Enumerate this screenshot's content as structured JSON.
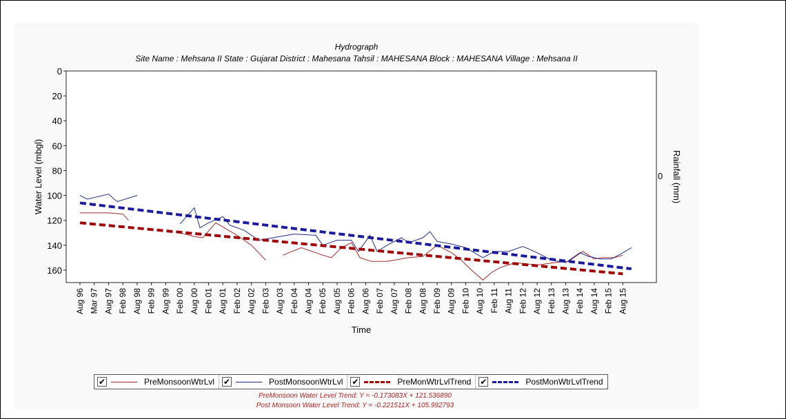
{
  "chart_data": {
    "type": "line",
    "title": "Hydrograph",
    "subtitle": "Site Name : Mehsana II  State : Gujarat District : Mahesana  Tahsil : MAHESANA  Block : MAHESANA Village : Mehsana II",
    "xlabel": "Time",
    "ylabel": "Water Level (mbgl)",
    "y2label": "Rainfall (mm)",
    "y2_tick": "0",
    "ylim": [
      0,
      170
    ],
    "y_inverted": true,
    "yticks": [
      "0",
      "20",
      "40",
      "60",
      "80",
      "100",
      "120",
      "140",
      "160"
    ],
    "categories": [
      "Aug 96",
      "Mar 97",
      "Aug 97",
      "Feb 98",
      "Aug 98",
      "Feb 99",
      "Aug 99",
      "Feb 00",
      "Aug 00",
      "Feb 01",
      "Aug 01",
      "Feb 02",
      "Aug 02",
      "Feb 03",
      "Aug 03",
      "Feb 04",
      "Aug 04",
      "Feb 05",
      "Aug 05",
      "Feb 06",
      "Aug 06",
      "Feb 07",
      "Aug 07",
      "Feb 08",
      "Aug 08",
      "Feb 09",
      "Aug 09",
      "Feb 10",
      "Aug 10",
      "Feb 11",
      "Aug 11",
      "Feb 12",
      "Aug 12",
      "Feb 13",
      "Aug 13",
      "Feb 14",
      "Aug 14",
      "Feb 15",
      "Aug 15"
    ],
    "series": [
      {
        "name": "PreMonsoonWtrLvl",
        "color": "#a52a2a",
        "style": "solid",
        "segments": [
          [
            [
              0,
              114
            ],
            [
              2,
              114
            ],
            [
              3,
              115
            ],
            [
              3.4,
              120
            ]
          ],
          [
            [
              7,
              130
            ],
            [
              8,
              133
            ],
            [
              8.6,
              134
            ],
            [
              9.5,
              122
            ],
            [
              11,
              132
            ],
            [
              12,
              140
            ],
            [
              13,
              152
            ]
          ],
          [
            [
              14.2,
              148
            ],
            [
              15.5,
              142
            ],
            [
              17,
              148
            ],
            [
              17.6,
              150
            ],
            [
              18.3,
              142
            ],
            [
              19,
              138
            ],
            [
              19.6,
              150
            ],
            [
              20.4,
              153
            ],
            [
              21.5,
              153
            ],
            [
              23,
              150
            ],
            [
              24,
              149
            ],
            [
              25,
              140
            ],
            [
              26,
              146
            ],
            [
              26.6,
              151
            ],
            [
              27.4,
              160
            ],
            [
              28.2,
              168
            ],
            [
              28.8,
              162
            ],
            [
              29.4,
              158
            ],
            [
              30.5,
              154
            ],
            [
              32,
              156
            ],
            [
              33.2,
              154
            ],
            [
              34.2,
              153
            ],
            [
              35.2,
              145
            ],
            [
              36,
              151
            ],
            [
              36.6,
              150
            ],
            [
              37.4,
              150
            ],
            [
              38,
              148
            ]
          ]
        ]
      },
      {
        "name": "PostMonsoonWtrLvl",
        "color": "#1f2d8a",
        "style": "solid",
        "segments": [
          [
            [
              0,
              100
            ],
            [
              0.5,
              103
            ],
            [
              2,
              99
            ],
            [
              2.6,
              105
            ],
            [
              4,
              100
            ]
          ],
          [
            [
              7,
              123
            ],
            [
              8,
              110
            ],
            [
              8.4,
              126
            ],
            [
              9,
              122
            ],
            [
              10,
              117
            ],
            [
              10.5,
              124
            ],
            [
              11.5,
              128
            ],
            [
              12.5,
              136
            ],
            [
              13.5,
              134
            ],
            [
              15,
              131
            ],
            [
              16.5,
              132
            ],
            [
              17,
              140
            ],
            [
              17.5,
              138
            ],
            [
              18,
              136
            ],
            [
              19,
              136
            ],
            [
              19.5,
              145
            ],
            [
              20.3,
              132
            ],
            [
              20.8,
              145
            ],
            [
              21.5,
              140
            ],
            [
              22.5,
              134
            ],
            [
              23,
              138
            ],
            [
              24,
              134
            ],
            [
              24.5,
              129
            ],
            [
              25,
              137
            ],
            [
              26,
              139
            ],
            [
              27,
              142
            ],
            [
              28.2,
              150
            ],
            [
              29,
              145
            ],
            [
              30,
              145
            ],
            [
              31,
              141
            ],
            [
              32,
              146
            ],
            [
              33,
              152
            ],
            [
              34,
              154
            ],
            [
              34.5,
              150
            ],
            [
              35,
              146
            ],
            [
              35.6,
              149
            ],
            [
              36.4,
              151
            ],
            [
              37.2,
              151
            ],
            [
              38,
              146
            ],
            [
              38.6,
              142
            ]
          ]
        ]
      },
      {
        "name": "PreMonWtrLvlTrend",
        "color": "#a00000",
        "style": "dashed",
        "from": [
          0,
          122
        ],
        "to": [
          38,
          163
        ]
      },
      {
        "name": "PostMonWtrLvlTrend",
        "color": "#1a1a9c",
        "style": "dashed",
        "from": [
          0,
          106
        ],
        "to": [
          38.6,
          159
        ]
      }
    ],
    "legend_position": "bottom",
    "grid": false
  },
  "legend": [
    {
      "label": "PreMonsoonWtrLvl",
      "check": "✔"
    },
    {
      "label": "PostMonsoonWtrLvl",
      "check": "✔"
    },
    {
      "label": "PreMonWtrLvlTrend",
      "check": "✔"
    },
    {
      "label": "PostMonWtrLvlTrend",
      "check": "✔"
    }
  ],
  "trend_equations": {
    "pre": "PreMonsoon Water Level Trend: Y = -0.173083X + 121.536890",
    "post": "Post Monsoon Water Level Trend: Y = -0.221511X + 105.992793"
  }
}
